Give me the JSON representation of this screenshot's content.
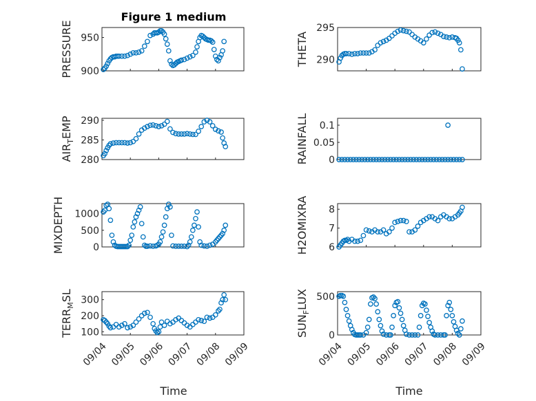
{
  "figure": {
    "title": "Figure 1 medium",
    "marker_color": "#0072BD",
    "x_ticks": [
      "09/04",
      "09/05",
      "09/06",
      "09/07",
      "09/08",
      "09/09"
    ]
  },
  "chart_data": [
    {
      "type": "scatter",
      "id": "pressure",
      "title": "Figure 1 medium",
      "ylabel": "PRESSURE",
      "xlabel": "",
      "xlim": [
        0,
        5
      ],
      "ylim": [
        900,
        965
      ],
      "yticks": [
        900,
        950
      ],
      "grid": true,
      "x": [
        0.05,
        0.1,
        0.15,
        0.2,
        0.25,
        0.3,
        0.35,
        0.4,
        0.45,
        0.5,
        0.55,
        0.6,
        0.7,
        0.8,
        0.9,
        1.0,
        1.1,
        1.2,
        1.3,
        1.4,
        1.5,
        1.6,
        1.7,
        1.8,
        1.85,
        1.9,
        1.95,
        2.0,
        2.05,
        2.1,
        2.15,
        2.2,
        2.25,
        2.3,
        2.35,
        2.4,
        2.45,
        2.5,
        2.55,
        2.6,
        2.65,
        2.7,
        2.75,
        2.8,
        2.9,
        3.0,
        3.1,
        3.2,
        3.3,
        3.35,
        3.4,
        3.45,
        3.5,
        3.55,
        3.6,
        3.65,
        3.7,
        3.75,
        3.8,
        3.85,
        3.9,
        3.95,
        4.0,
        4.05,
        4.1,
        4.15,
        4.2,
        4.25,
        4.3
      ],
      "y": [
        902,
        904,
        907,
        911,
        915,
        918,
        920,
        921,
        921,
        922,
        922,
        922,
        922,
        922,
        923,
        925,
        927,
        927,
        928,
        930,
        937,
        944,
        953,
        955,
        957,
        957,
        957,
        958,
        960,
        960,
        958,
        955,
        948,
        940,
        930,
        915,
        910,
        908,
        909,
        911,
        913,
        914,
        915,
        916,
        917,
        919,
        921,
        923,
        928,
        936,
        944,
        950,
        953,
        952,
        950,
        948,
        947,
        946,
        946,
        945,
        943,
        932,
        922,
        917,
        915,
        920,
        924,
        930,
        944
      ]
    },
    {
      "type": "scatter",
      "id": "theta",
      "ylabel": "THETA",
      "xlim": [
        0,
        5
      ],
      "ylim": [
        288.2,
        295
      ],
      "yticks": [
        290,
        295
      ],
      "grid": true,
      "x": [
        0.05,
        0.1,
        0.15,
        0.2,
        0.25,
        0.3,
        0.4,
        0.5,
        0.6,
        0.7,
        0.8,
        0.9,
        1.0,
        1.1,
        1.2,
        1.3,
        1.4,
        1.5,
        1.6,
        1.7,
        1.8,
        1.9,
        2.0,
        2.1,
        2.2,
        2.3,
        2.4,
        2.5,
        2.6,
        2.7,
        2.8,
        2.9,
        3.0,
        3.1,
        3.2,
        3.3,
        3.4,
        3.5,
        3.6,
        3.7,
        3.8,
        3.9,
        4.0,
        4.1,
        4.15,
        4.2,
        4.25,
        4.3,
        4.35
      ],
      "y": [
        289.6,
        290.2,
        290.6,
        290.8,
        290.9,
        290.9,
        290.9,
        290.8,
        290.9,
        290.9,
        291.0,
        291.0,
        291.0,
        291.0,
        291.2,
        291.5,
        292.2,
        292.6,
        292.8,
        293.0,
        293.3,
        293.7,
        294.1,
        294.4,
        294.6,
        294.5,
        294.4,
        294.3,
        293.9,
        293.5,
        293.2,
        292.9,
        292.6,
        293.2,
        293.8,
        294.2,
        294.3,
        294.1,
        293.9,
        293.6,
        293.5,
        293.4,
        293.5,
        293.4,
        293.3,
        293.0,
        292.6,
        291.5,
        288.5
      ]
    },
    {
      "type": "scatter",
      "id": "air_temp",
      "ylabel": "AIR_TEMP",
      "xlim": [
        0,
        5
      ],
      "ylim": [
        280,
        290.5
      ],
      "yticks": [
        280,
        285,
        290
      ],
      "grid": true,
      "x": [
        0.05,
        0.1,
        0.15,
        0.2,
        0.25,
        0.3,
        0.4,
        0.5,
        0.6,
        0.7,
        0.8,
        0.9,
        1.0,
        1.1,
        1.2,
        1.3,
        1.4,
        1.5,
        1.6,
        1.7,
        1.8,
        1.9,
        2.0,
        2.1,
        2.2,
        2.3,
        2.4,
        2.5,
        2.6,
        2.7,
        2.8,
        2.9,
        3.0,
        3.1,
        3.2,
        3.3,
        3.4,
        3.5,
        3.6,
        3.7,
        3.8,
        3.9,
        4.0,
        4.1,
        4.2,
        4.25,
        4.3,
        4.35
      ],
      "y": [
        281.0,
        281.5,
        282.3,
        283.0,
        283.6,
        284.0,
        284.2,
        284.3,
        284.3,
        284.3,
        284.3,
        284.2,
        284.3,
        284.6,
        285.3,
        286.5,
        287.5,
        288.0,
        288.4,
        288.7,
        288.8,
        288.6,
        288.4,
        288.6,
        289.0,
        289.7,
        287.8,
        286.9,
        286.6,
        286.5,
        286.5,
        286.5,
        286.6,
        286.5,
        286.4,
        286.4,
        287.2,
        288.4,
        289.6,
        290.0,
        289.6,
        288.6,
        287.7,
        287.3,
        287.0,
        285.5,
        284.2,
        283.3
      ]
    },
    {
      "type": "scatter",
      "id": "rainfall",
      "ylabel": "RAINFALL",
      "xlim": [
        0,
        5
      ],
      "ylim": [
        0,
        0.12
      ],
      "yticks": [
        0,
        0.05,
        0.1
      ],
      "ytick_labels": [
        "0",
        "0.05",
        "0.1"
      ],
      "grid": true,
      "x": [
        0.05,
        0.15,
        0.25,
        0.35,
        0.45,
        0.55,
        0.65,
        0.75,
        0.85,
        0.95,
        1.05,
        1.15,
        1.25,
        1.35,
        1.45,
        1.55,
        1.65,
        1.75,
        1.85,
        1.95,
        2.05,
        2.15,
        2.25,
        2.35,
        2.45,
        2.55,
        2.65,
        2.75,
        2.85,
        2.95,
        3.05,
        3.15,
        3.25,
        3.35,
        3.45,
        3.55,
        3.65,
        3.75,
        3.85,
        3.95,
        4.05,
        4.15,
        4.25,
        4.35,
        3.85
      ],
      "y": [
        0,
        0,
        0,
        0,
        0,
        0,
        0,
        0,
        0,
        0,
        0,
        0,
        0,
        0,
        0,
        0,
        0,
        0,
        0,
        0,
        0,
        0,
        0,
        0,
        0,
        0,
        0,
        0,
        0,
        0,
        0,
        0,
        0,
        0,
        0,
        0,
        0,
        0,
        0,
        0,
        0,
        0,
        0,
        0,
        0.1
      ]
    },
    {
      "type": "scatter",
      "id": "mixdepth",
      "ylabel": "MIXDEPTH",
      "xlim": [
        0,
        5
      ],
      "ylim": [
        0,
        1300
      ],
      "yticks": [
        0,
        500,
        1000
      ],
      "grid": true,
      "x": [
        0.05,
        0.1,
        0.15,
        0.2,
        0.25,
        0.3,
        0.35,
        0.4,
        0.45,
        0.5,
        0.55,
        0.6,
        0.65,
        0.7,
        0.75,
        0.8,
        0.85,
        0.9,
        0.95,
        1.0,
        1.05,
        1.1,
        1.15,
        1.2,
        1.25,
        1.3,
        1.35,
        1.4,
        1.45,
        1.5,
        1.55,
        1.6,
        1.7,
        1.8,
        1.9,
        1.95,
        2.0,
        2.05,
        2.1,
        2.15,
        2.2,
        2.25,
        2.3,
        2.35,
        2.4,
        2.45,
        2.5,
        2.6,
        2.7,
        2.8,
        2.9,
        3.0,
        3.05,
        3.1,
        3.15,
        3.2,
        3.25,
        3.3,
        3.35,
        3.4,
        3.45,
        3.5,
        3.6,
        3.7,
        3.8,
        3.9,
        4.0,
        4.05,
        4.1,
        4.15,
        4.2,
        4.25,
        4.3,
        4.35
      ],
      "y": [
        1050,
        1100,
        1250,
        1280,
        1150,
        800,
        350,
        150,
        50,
        20,
        10,
        10,
        10,
        10,
        10,
        10,
        10,
        10,
        50,
        200,
        350,
        600,
        750,
        900,
        1000,
        1100,
        1200,
        700,
        300,
        50,
        20,
        20,
        30,
        20,
        30,
        50,
        80,
        150,
        300,
        450,
        650,
        900,
        1150,
        1280,
        1200,
        350,
        30,
        20,
        20,
        20,
        20,
        10,
        50,
        150,
        300,
        500,
        650,
        850,
        1050,
        600,
        150,
        50,
        30,
        20,
        50,
        80,
        150,
        200,
        250,
        300,
        350,
        400,
        500,
        650
      ]
    },
    {
      "type": "scatter",
      "id": "h2omixra",
      "ylabel": "H2OMIXRA",
      "xlim": [
        0,
        5
      ],
      "ylim": [
        6,
        8.3
      ],
      "yticks": [
        6,
        7,
        8
      ],
      "grid": true,
      "x": [
        0.05,
        0.1,
        0.15,
        0.2,
        0.25,
        0.3,
        0.35,
        0.4,
        0.5,
        0.6,
        0.7,
        0.8,
        0.9,
        1.0,
        1.1,
        1.2,
        1.3,
        1.4,
        1.5,
        1.6,
        1.7,
        1.8,
        1.9,
        2.0,
        2.1,
        2.2,
        2.3,
        2.4,
        2.5,
        2.6,
        2.7,
        2.8,
        2.9,
        3.0,
        3.1,
        3.2,
        3.3,
        3.4,
        3.5,
        3.6,
        3.7,
        3.8,
        3.9,
        4.0,
        4.1,
        4.2,
        4.25,
        4.3,
        4.35
      ],
      "y": [
        6.0,
        6.1,
        6.2,
        6.3,
        6.35,
        6.35,
        6.4,
        6.3,
        6.4,
        6.3,
        6.3,
        6.35,
        6.6,
        6.9,
        6.85,
        6.8,
        6.9,
        6.8,
        6.8,
        6.9,
        6.7,
        6.8,
        7.0,
        7.3,
        7.35,
        7.4,
        7.4,
        7.35,
        6.8,
        6.8,
        6.9,
        7.1,
        7.3,
        7.4,
        7.5,
        7.6,
        7.6,
        7.5,
        7.4,
        7.6,
        7.7,
        7.6,
        7.5,
        7.5,
        7.6,
        7.7,
        7.8,
        7.9,
        8.1
      ]
    },
    {
      "type": "scatter",
      "id": "terr_msl",
      "ylabel": "TERR_MSL",
      "xlim": [
        0,
        5
      ],
      "ylim": [
        80,
        350
      ],
      "yticks": [
        100,
        200,
        300
      ],
      "grid": true,
      "x": [
        0.05,
        0.1,
        0.15,
        0.2,
        0.25,
        0.3,
        0.4,
        0.5,
        0.6,
        0.7,
        0.8,
        0.9,
        1.0,
        1.1,
        1.2,
        1.3,
        1.4,
        1.5,
        1.6,
        1.7,
        1.8,
        1.85,
        1.9,
        1.95,
        2.0,
        2.05,
        2.1,
        2.2,
        2.3,
        2.4,
        2.5,
        2.6,
        2.7,
        2.8,
        2.9,
        3.0,
        3.1,
        3.2,
        3.3,
        3.4,
        3.5,
        3.6,
        3.7,
        3.8,
        3.9,
        4.0,
        4.1,
        4.15,
        4.2,
        4.25,
        4.3,
        4.35
      ],
      "y": [
        175,
        170,
        160,
        150,
        135,
        125,
        130,
        145,
        130,
        140,
        150,
        125,
        130,
        140,
        160,
        180,
        200,
        215,
        220,
        190,
        150,
        120,
        105,
        95,
        100,
        130,
        160,
        140,
        165,
        150,
        160,
        175,
        185,
        170,
        155,
        140,
        130,
        145,
        160,
        175,
        170,
        165,
        190,
        185,
        190,
        205,
        230,
        240,
        280,
        300,
        330,
        300
      ]
    },
    {
      "type": "scatter",
      "id": "sun_flux",
      "ylabel": "SUN_FLUX",
      "xlim": [
        0,
        5
      ],
      "ylim": [
        0,
        560
      ],
      "yticks": [
        0,
        500
      ],
      "grid": true,
      "x": [
        0.05,
        0.1,
        0.15,
        0.2,
        0.25,
        0.3,
        0.35,
        0.4,
        0.45,
        0.5,
        0.55,
        0.6,
        0.65,
        0.7,
        0.75,
        0.8,
        0.9,
        1.0,
        1.05,
        1.1,
        1.15,
        1.2,
        1.25,
        1.3,
        1.35,
        1.4,
        1.45,
        1.5,
        1.55,
        1.6,
        1.7,
        1.8,
        1.85,
        1.9,
        1.95,
        2.0,
        2.05,
        2.1,
        2.15,
        2.2,
        2.25,
        2.3,
        2.35,
        2.4,
        2.5,
        2.6,
        2.7,
        2.8,
        2.85,
        2.9,
        2.95,
        3.0,
        3.05,
        3.1,
        3.15,
        3.2,
        3.25,
        3.3,
        3.35,
        3.4,
        3.5,
        3.6,
        3.7,
        3.75,
        3.8,
        3.85,
        3.9,
        3.95,
        4.0,
        4.05,
        4.1,
        4.15,
        4.2,
        4.25,
        4.3,
        4.35
      ],
      "y": [
        500,
        510,
        510,
        500,
        420,
        330,
        250,
        180,
        120,
        70,
        30,
        5,
        0,
        0,
        0,
        0,
        0,
        30,
        100,
        200,
        400,
        480,
        490,
        470,
        400,
        300,
        200,
        120,
        50,
        10,
        0,
        0,
        0,
        100,
        250,
        380,
        420,
        430,
        350,
        280,
        200,
        120,
        60,
        10,
        0,
        0,
        0,
        0,
        100,
        250,
        380,
        410,
        400,
        320,
        240,
        160,
        100,
        50,
        10,
        0,
        0,
        0,
        0,
        0,
        250,
        380,
        420,
        330,
        250,
        170,
        110,
        60,
        20,
        0,
        80,
        180
      ]
    }
  ]
}
